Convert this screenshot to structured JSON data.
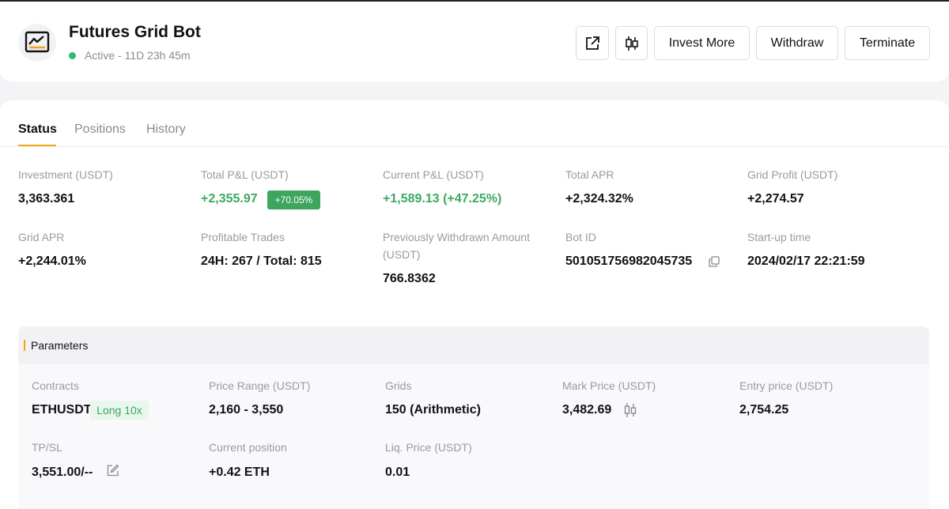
{
  "bot": {
    "title": "Futures Grid Bot",
    "status": "Active - 11D 23h 45m",
    "icon": "chart-icon",
    "status_color": "#2fbd6b"
  },
  "actions": {
    "share_icon": "external-link-icon",
    "candle_icon": "candlestick-icon",
    "invest_more": "Invest More",
    "withdraw": "Withdraw",
    "terminate": "Terminate"
  },
  "tabs": [
    {
      "label": "Status",
      "active": true
    },
    {
      "label": "Positions",
      "active": false
    },
    {
      "label": "History",
      "active": false
    }
  ],
  "stats": {
    "investment_label": "Investment (USDT)",
    "investment_value": "3,363.361",
    "total_pnl_label": "Total P&L (USDT)",
    "total_pnl_value": "+2,355.97",
    "total_pnl_pct": "+70.05%",
    "current_pnl_label": "Current P&L (USDT)",
    "current_pnl_value": "+1,589.13 (+47.25%)",
    "total_apr_label": "Total APR",
    "total_apr_value": "+2,324.32%",
    "grid_profit_label": "Grid Profit (USDT)",
    "grid_profit_value": "+2,274.57",
    "grid_apr_label": "Grid APR",
    "grid_apr_value": "+2,244.01%",
    "profitable_trades_label": "Profitable Trades",
    "profitable_trades_value": "24H: 267 / Total: 815",
    "withdrawn_label_1": "Previously Withdrawn Amount",
    "withdrawn_label_2": "(USDT)",
    "withdrawn_value": "766.8362",
    "bot_id_label": "Bot ID",
    "bot_id_value": "501051756982045735",
    "startup_label": "Start-up time",
    "startup_value": "2024/02/17 22:21:59"
  },
  "parameters": {
    "title": "Parameters",
    "contracts_label": "Contracts",
    "contracts_value": "ETHUSDT",
    "contracts_badge": "Long 10x",
    "price_range_label": "Price Range (USDT)",
    "price_range_value": "2,160 - 3,550",
    "grids_label": "Grids",
    "grids_value": "150 (Arithmetic)",
    "mark_price_label": "Mark Price (USDT)",
    "mark_price_value": "3,482.69",
    "entry_price_label": "Entry price (USDT)",
    "entry_price_value": "2,754.25",
    "tpsl_label": "TP/SL",
    "tpsl_value": "3,551.00/--",
    "current_position_label": "Current position",
    "current_position_value": "+0.42 ETH",
    "liq_price_label": "Liq. Price (USDT)",
    "liq_price_value": "0.01"
  },
  "colors": {
    "accent": "#f0a51e",
    "positive": "#3fa865",
    "badge_green": "#3ea55c"
  }
}
